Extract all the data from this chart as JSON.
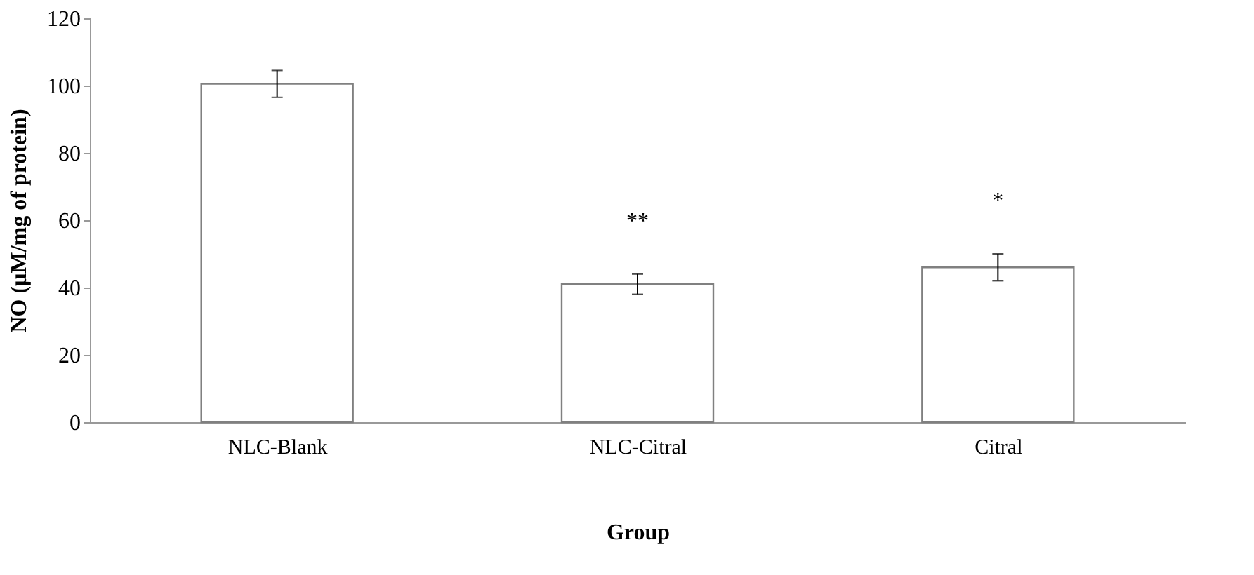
{
  "chart_data": {
    "type": "bar",
    "xlabel": "Group",
    "ylabel": "NO (µM/mg of protein)",
    "categories": [
      "NLC-Blank",
      "NLC-Citral",
      "Citral"
    ],
    "values": [
      100.5,
      41,
      46
    ],
    "errors": [
      4,
      3,
      4
    ],
    "color": "#ffffff",
    "ylim": [
      0,
      120
    ],
    "yticks": [
      0,
      20,
      40,
      60,
      80,
      100,
      120
    ],
    "grid": false,
    "annotations": [
      "**",
      "*"
    ]
  }
}
